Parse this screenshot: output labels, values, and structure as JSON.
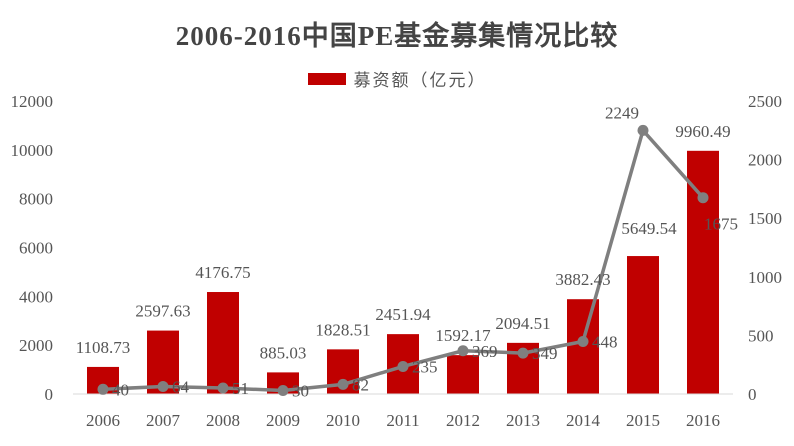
{
  "chart_data": {
    "type": "bar+line",
    "title": "2006-2016中国PE基金募集情况比较",
    "categories": [
      "2006",
      "2007",
      "2008",
      "2009",
      "2010",
      "2011",
      "2012",
      "2013",
      "2014",
      "2015",
      "2016"
    ],
    "series": [
      {
        "name": "募资额（亿元）",
        "type": "bar",
        "axis": "left",
        "color": "#C00000",
        "values": [
          1108.73,
          2597.63,
          4176.75,
          885.03,
          1828.51,
          2451.94,
          1592.17,
          2094.51,
          3882.43,
          5649.54,
          9960.49
        ],
        "labels": [
          "1108.73",
          "2597.63",
          "4176.75",
          "885.03",
          "1828.51",
          "2451.94",
          "1592.17",
          "2094.51",
          "3882.43",
          "5649.54",
          "9960.49"
        ]
      },
      {
        "type": "line",
        "axis": "right",
        "color": "#7F7F7F",
        "values": [
          40,
          64,
          51,
          30,
          82,
          235,
          369,
          349,
          448,
          2249,
          1675
        ],
        "labels": [
          "40",
          "64",
          "51",
          "30",
          "82",
          "235",
          "369",
          "349",
          "448",
          "2249",
          "1675"
        ]
      }
    ],
    "y_left": {
      "min": 0,
      "max": 12000,
      "ticks": [
        0,
        2000,
        4000,
        6000,
        8000,
        10000,
        12000
      ]
    },
    "y_right": {
      "min": 0,
      "max": 2500,
      "ticks": [
        0,
        500,
        1000,
        1500,
        2000,
        2500
      ]
    },
    "grid": false,
    "legend": "top-center"
  }
}
